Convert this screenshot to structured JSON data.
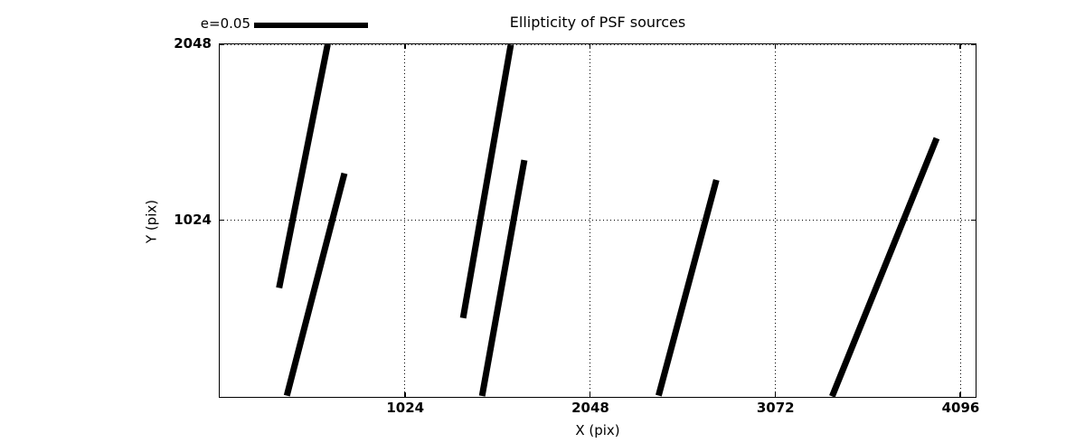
{
  "legend": {
    "label": "e=0.05"
  },
  "chart_data": {
    "type": "line",
    "mark": "psf-ellipticity-whiskers",
    "title": "Ellipticity of PSF sources",
    "xlabel": "X (pix)",
    "ylabel": "Y (pix)",
    "xlim": [
      0,
      4176
    ],
    "ylim": [
      0,
      2048
    ],
    "x_ticks": [
      1024,
      2048,
      3072,
      4096
    ],
    "y_ticks": [
      1024,
      2048
    ],
    "grid": "dotted, at major ticks, black",
    "legend": {
      "label": "e=0.05",
      "position": "above-axes-upper-left",
      "bar_scale_e": 0.05
    },
    "segments": [
      {
        "x1": 329,
        "y1": 627,
        "x2": 598,
        "y2": 2048
      },
      {
        "x1": 369,
        "y1": 0,
        "x2": 688,
        "y2": 1296
      },
      {
        "x1": 1345,
        "y1": 455,
        "x2": 1609,
        "y2": 2048
      },
      {
        "x1": 1450,
        "y1": 0,
        "x2": 1684,
        "y2": 1374
      },
      {
        "x1": 2427,
        "y1": 0,
        "x2": 2746,
        "y2": 1254
      },
      {
        "x1": 3388,
        "y1": 0,
        "x2": 3967,
        "y2": 1505
      }
    ]
  }
}
